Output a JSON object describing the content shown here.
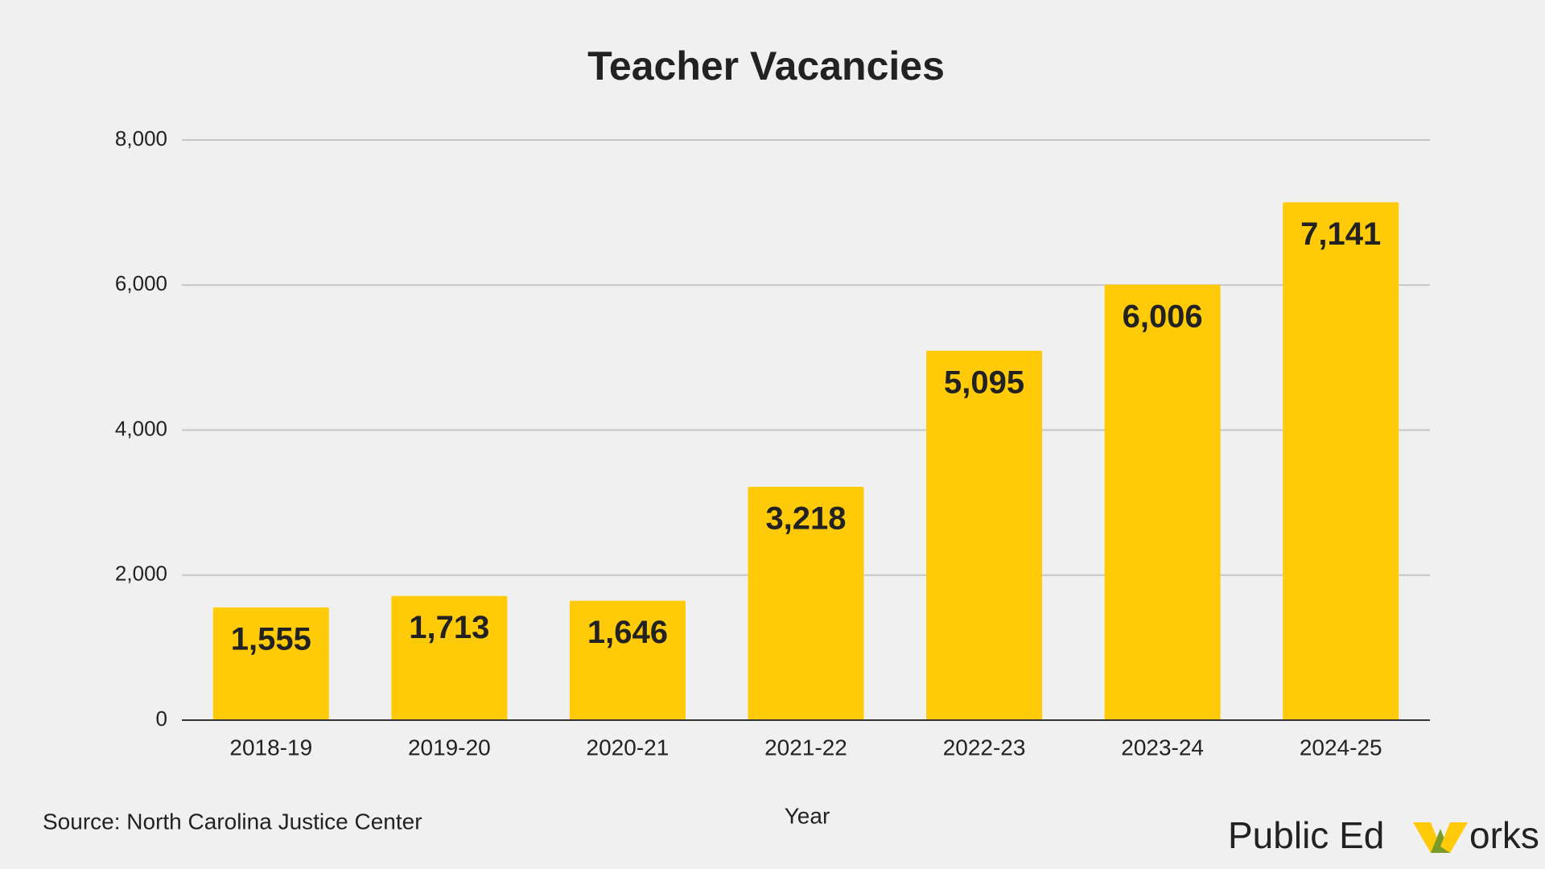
{
  "chart_data": {
    "type": "bar",
    "title": "Teacher Vacancies",
    "categories": [
      "2018-19",
      "2019-20",
      "2020-21",
      "2021-22",
      "2022-23",
      "2023-24",
      "2024-25"
    ],
    "values": [
      1555,
      1713,
      1646,
      3218,
      5095,
      6006,
      7141
    ],
    "value_labels": [
      "1,555",
      "1,713",
      "1,646",
      "3,218",
      "5,095",
      "6,006",
      "7,141"
    ],
    "color": "#ffca08",
    "ylim": [
      0,
      8000
    ],
    "yticks": [
      0,
      {
        "value": 2000,
        "label": "2,000"
      },
      {
        "value": 4000,
        "label": "4,000"
      },
      {
        "value": 6000,
        "label": "6,000"
      },
      {
        "value": 8000,
        "label": "8,000"
      }
    ],
    "grid": true,
    "xlabel": "Year"
  },
  "source": "Source: North Carolina Justice Center",
  "logo": {
    "left": "Public Ed",
    "right": "orks"
  }
}
